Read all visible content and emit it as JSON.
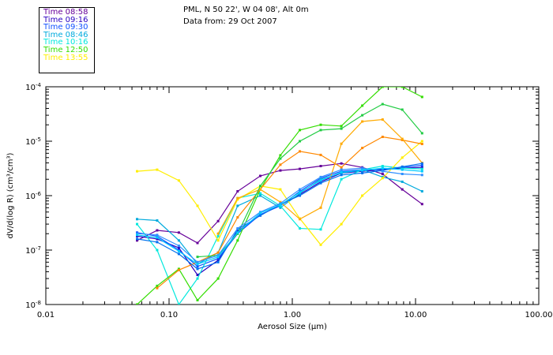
{
  "header": {
    "title": "PML, N 50 22', W 04 08', Alt 0m",
    "subtitle": "Data from: 29 Oct 2007"
  },
  "chart_data": {
    "type": "line",
    "xlabel": "Aerosol Size (µm)",
    "ylabel": "dV/d(log R) (cm³/cm³)",
    "x_scale": "log",
    "y_scale": "log",
    "xlim": [
      0.01,
      100
    ],
    "ylim": [
      1e-08,
      0.0001
    ],
    "x_ticks": [
      {
        "value": 0.01,
        "label": "0.01"
      },
      {
        "value": 0.1,
        "label": "0.10"
      },
      {
        "value": 1,
        "label": "1.00"
      },
      {
        "value": 10,
        "label": "10.00"
      },
      {
        "value": 100,
        "label": "100.00"
      }
    ],
    "y_ticks": [
      {
        "value": 1e-08,
        "base": "10",
        "exp": "-8"
      },
      {
        "value": 1e-07,
        "base": "10",
        "exp": "-7"
      },
      {
        "value": 1e-06,
        "base": "10",
        "exp": "-6"
      },
      {
        "value": 1e-05,
        "base": "10",
        "exp": "-5"
      },
      {
        "value": 0.0001,
        "base": "10",
        "exp": "-4"
      }
    ],
    "x": [
      0.055,
      0.08,
      0.12,
      0.17,
      0.25,
      0.36,
      0.55,
      0.8,
      1.15,
      1.7,
      2.5,
      3.7,
      5.4,
      7.8,
      11.3
    ],
    "series": [
      {
        "name": "Time 08:58",
        "color": "#660099",
        "values": [
          1.5e-07,
          2.3e-07,
          2.1e-07,
          1.35e-07,
          3.4e-07,
          1.2e-06,
          2.3e-06,
          2.9e-06,
          3.1e-06,
          3.5e-06,
          3.9e-06,
          3.3e-06,
          2.5e-06,
          1.3e-06,
          7e-07
        ]
      },
      {
        "name": "Time 09:16",
        "color": "#2a00c0",
        "values": [
          1.8e-07,
          1.6e-07,
          1.1e-07,
          3.5e-08,
          6.5e-08,
          2.2e-07,
          4.4e-07,
          6.7e-07,
          1.05e-06,
          1.8e-06,
          2.6e-06,
          2.8e-06,
          3e-06,
          3.2e-06,
          3.3e-06
        ]
      },
      {
        "name": "Time 09:30",
        "color": "#1050ff",
        "values": [
          2.1e-07,
          1.8e-07,
          1e-07,
          5e-08,
          7e-08,
          2e-07,
          4.5e-07,
          6.5e-07,
          1.2e-06,
          2.1e-06,
          2.8e-06,
          3e-06,
          3.1e-06,
          3.3e-06,
          3.6e-06
        ]
      },
      {
        "name": "Time 08:46",
        "color": "#00aadd",
        "values": [
          3.7e-07,
          3.5e-07,
          1.5e-07,
          5.5e-08,
          9e-08,
          6.5e-07,
          1e-06,
          6e-07,
          1.1e-06,
          2e-06,
          2.6e-06,
          3e-06,
          2.2e-06,
          1.8e-06,
          1.2e-06
        ]
      },
      {
        "name": "Time 10:16",
        "color": "#00e8dd",
        "values": [
          3e-07,
          1e-07,
          1e-08,
          3e-08,
          1.8e-07,
          9e-07,
          1.1e-06,
          6.5e-07,
          2.5e-07,
          2.4e-07,
          2e-06,
          3e-06,
          3.5e-06,
          3.2e-06,
          3.1e-06
        ]
      },
      {
        "name": "Time 12:50",
        "color": "#33dd00",
        "values": [
          1e-08,
          2.2e-08,
          4.5e-08,
          1.2e-08,
          3e-08,
          1.5e-07,
          1.3e-06,
          5.5e-06,
          1.6e-05,
          2e-05,
          1.9e-05,
          4.5e-05,
          0.0001,
          0.0001,
          6.5e-05
        ]
      },
      {
        "name": "Time 13:55",
        "color": "#ffee00",
        "values": [
          2.8e-06,
          3e-06,
          1.9e-06,
          6.5e-07,
          1.5e-07,
          8.5e-07,
          1.5e-06,
          1.3e-06,
          3.8e-07,
          1.25e-07,
          3e-07,
          1e-06,
          2.1e-06,
          5e-06,
          1e-05
        ]
      },
      {
        "name": "",
        "color": "#ff8800",
        "values": [
          null,
          2e-08,
          4.3e-08,
          6e-08,
          9e-08,
          4e-07,
          1.3e-06,
          3.7e-06,
          6.5e-06,
          5.6e-06,
          3.3e-06,
          7.5e-06,
          1.2e-05,
          1.05e-05,
          8.9e-06
        ]
      },
      {
        "name": "",
        "color": "#ffaa00",
        "values": [
          null,
          null,
          null,
          null,
          2e-07,
          9e-07,
          1.3e-06,
          7.6e-07,
          3.7e-07,
          6e-07,
          9e-06,
          2.3e-05,
          2.5e-05,
          1.1e-05,
          4e-06
        ]
      },
      {
        "name": "",
        "color": "#22cc44",
        "values": [
          null,
          null,
          null,
          7.5e-08,
          8e-08,
          2e-07,
          1.5e-06,
          4.8e-06,
          1e-05,
          1.6e-05,
          1.7e-05,
          3e-05,
          4.8e-05,
          3.8e-05,
          1.4e-05
        ]
      },
      {
        "name": "",
        "color": "#0070ee",
        "values": [
          1.6e-07,
          1.4e-07,
          8.5e-08,
          4.5e-08,
          6e-08,
          2.4e-07,
          4.3e-07,
          7e-07,
          1e-06,
          1.7e-06,
          2.4e-06,
          2.6e-06,
          2.9e-06,
          3.4e-06,
          3.9e-06
        ]
      },
      {
        "name": "",
        "color": "#3090ff",
        "values": [
          2e-07,
          1.9e-07,
          1.2e-07,
          6e-08,
          8e-08,
          2.5e-07,
          5e-07,
          7.2e-07,
          1.3e-06,
          2.2e-06,
          3e-06,
          3.2e-06,
          2.8e-06,
          2.5e-06,
          2.4e-06
        ]
      },
      {
        "name": "",
        "color": "#00ccff",
        "values": [
          1.9e-07,
          1.7e-07,
          9.5e-08,
          5.5e-08,
          7.5e-08,
          2.1e-07,
          4.8e-07,
          6.8e-07,
          1.15e-06,
          1.9e-06,
          2.7e-06,
          2.9e-06,
          3.2e-06,
          3e-06,
          2.8e-06
        ]
      }
    ]
  }
}
